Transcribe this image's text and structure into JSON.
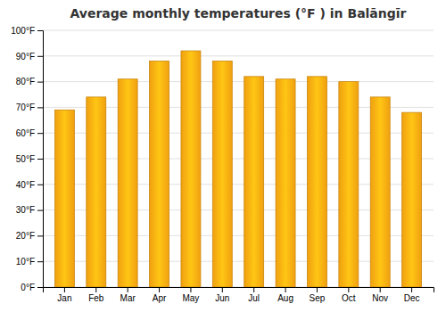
{
  "chart_data": {
    "type": "bar",
    "title": "Average monthly temperatures (°F ) in Balāngīr",
    "categories": [
      "Jan",
      "Feb",
      "Mar",
      "Apr",
      "May",
      "Jun",
      "Jul",
      "Aug",
      "Sep",
      "Oct",
      "Nov",
      "Dec"
    ],
    "values": [
      69,
      74,
      81,
      88,
      92,
      88,
      82,
      81,
      82,
      80,
      74,
      68
    ],
    "color": "#F0A010",
    "ylim": [
      0,
      100
    ],
    "yticks": [
      {
        "value": 0,
        "label": "0°F"
      },
      {
        "value": 10,
        "label": "10°F"
      },
      {
        "value": 20,
        "label": "20°F"
      },
      {
        "value": 30,
        "label": "30°F"
      },
      {
        "value": 40,
        "label": "40°F"
      },
      {
        "value": 50,
        "label": "50°F"
      },
      {
        "value": 60,
        "label": "60°F"
      },
      {
        "value": 70,
        "label": "70°F"
      },
      {
        "value": 80,
        "label": "80°F"
      },
      {
        "value": 90,
        "label": "90°F"
      },
      {
        "value": 100,
        "label": "100°F"
      }
    ],
    "grid": true
  }
}
